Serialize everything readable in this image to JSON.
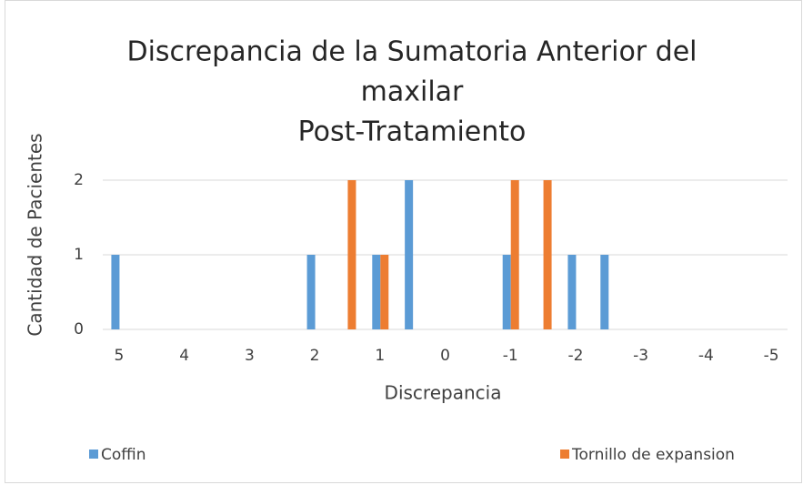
{
  "chart_data": {
    "type": "bar",
    "title": [
      "Discrepancia de la Sumatoria Anterior del",
      "maxilar",
      "Post-Tratamiento"
    ],
    "x_label": "Discrepancia",
    "y_label": "Cantidad de Pacientes",
    "categories": [
      "5",
      null,
      "4",
      null,
      "3",
      null,
      "2",
      null,
      "1",
      null,
      "0",
      null,
      "-1",
      null,
      "-2",
      null,
      "-3",
      null,
      "-4",
      null,
      "-5"
    ],
    "series": [
      {
        "name": "Coffin",
        "color": "#5b9bd5",
        "values": [
          1,
          0,
          0,
          0,
          0,
          0,
          1,
          0,
          1,
          2,
          0,
          0,
          1,
          0,
          1,
          1,
          0,
          0,
          0,
          0,
          0
        ]
      },
      {
        "name": "Tornillo de expansion",
        "color": "#ed7d31",
        "values": [
          0,
          0,
          0,
          0,
          0,
          0,
          0,
          2,
          1,
          0,
          0,
          0,
          2,
          2,
          0,
          0,
          0,
          0,
          0,
          0,
          0
        ]
      }
    ],
    "ylim": [
      0,
      2
    ],
    "yticks": [
      0,
      1,
      2
    ],
    "grid": true,
    "legend": "bottom"
  }
}
